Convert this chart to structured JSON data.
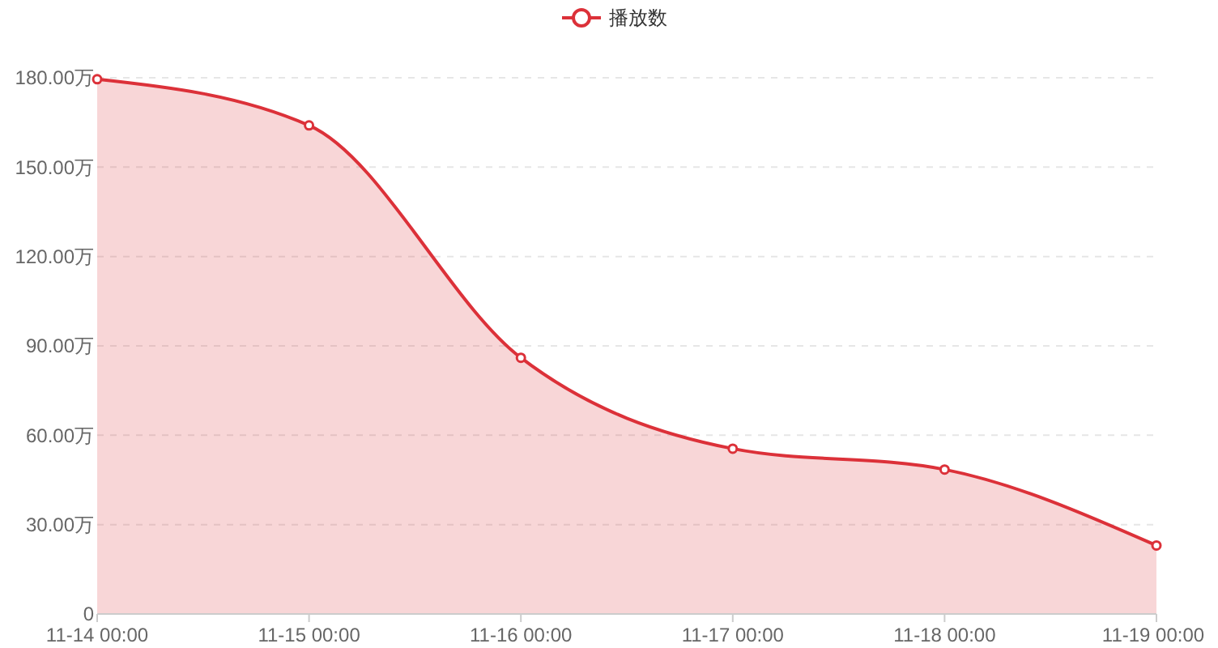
{
  "chart_data": {
    "type": "area",
    "categories": [
      "11-14 00:00",
      "11-15 00:00",
      "11-16 00:00",
      "11-17 00:00",
      "11-18 00:00",
      "11-19 00:00"
    ],
    "series": [
      {
        "name": "播放数",
        "color": "#dc3139",
        "values": [
          179.5,
          164,
          86,
          55.5,
          48.5,
          23
        ]
      }
    ],
    "ylim": [
      0,
      180
    ],
    "yticks": [
      {
        "value": 0,
        "label": "0"
      },
      {
        "value": 30,
        "label": "30.00万"
      },
      {
        "value": 60,
        "label": "60.00万"
      },
      {
        "value": 90,
        "label": "90.00万"
      },
      {
        "value": 120,
        "label": "120.00万"
      },
      {
        "value": 150,
        "label": "150.00万"
      },
      {
        "value": 180,
        "label": "180.00万"
      }
    ],
    "grid": "y",
    "legend": "top",
    "marker": "circle",
    "line_style": "solid"
  }
}
